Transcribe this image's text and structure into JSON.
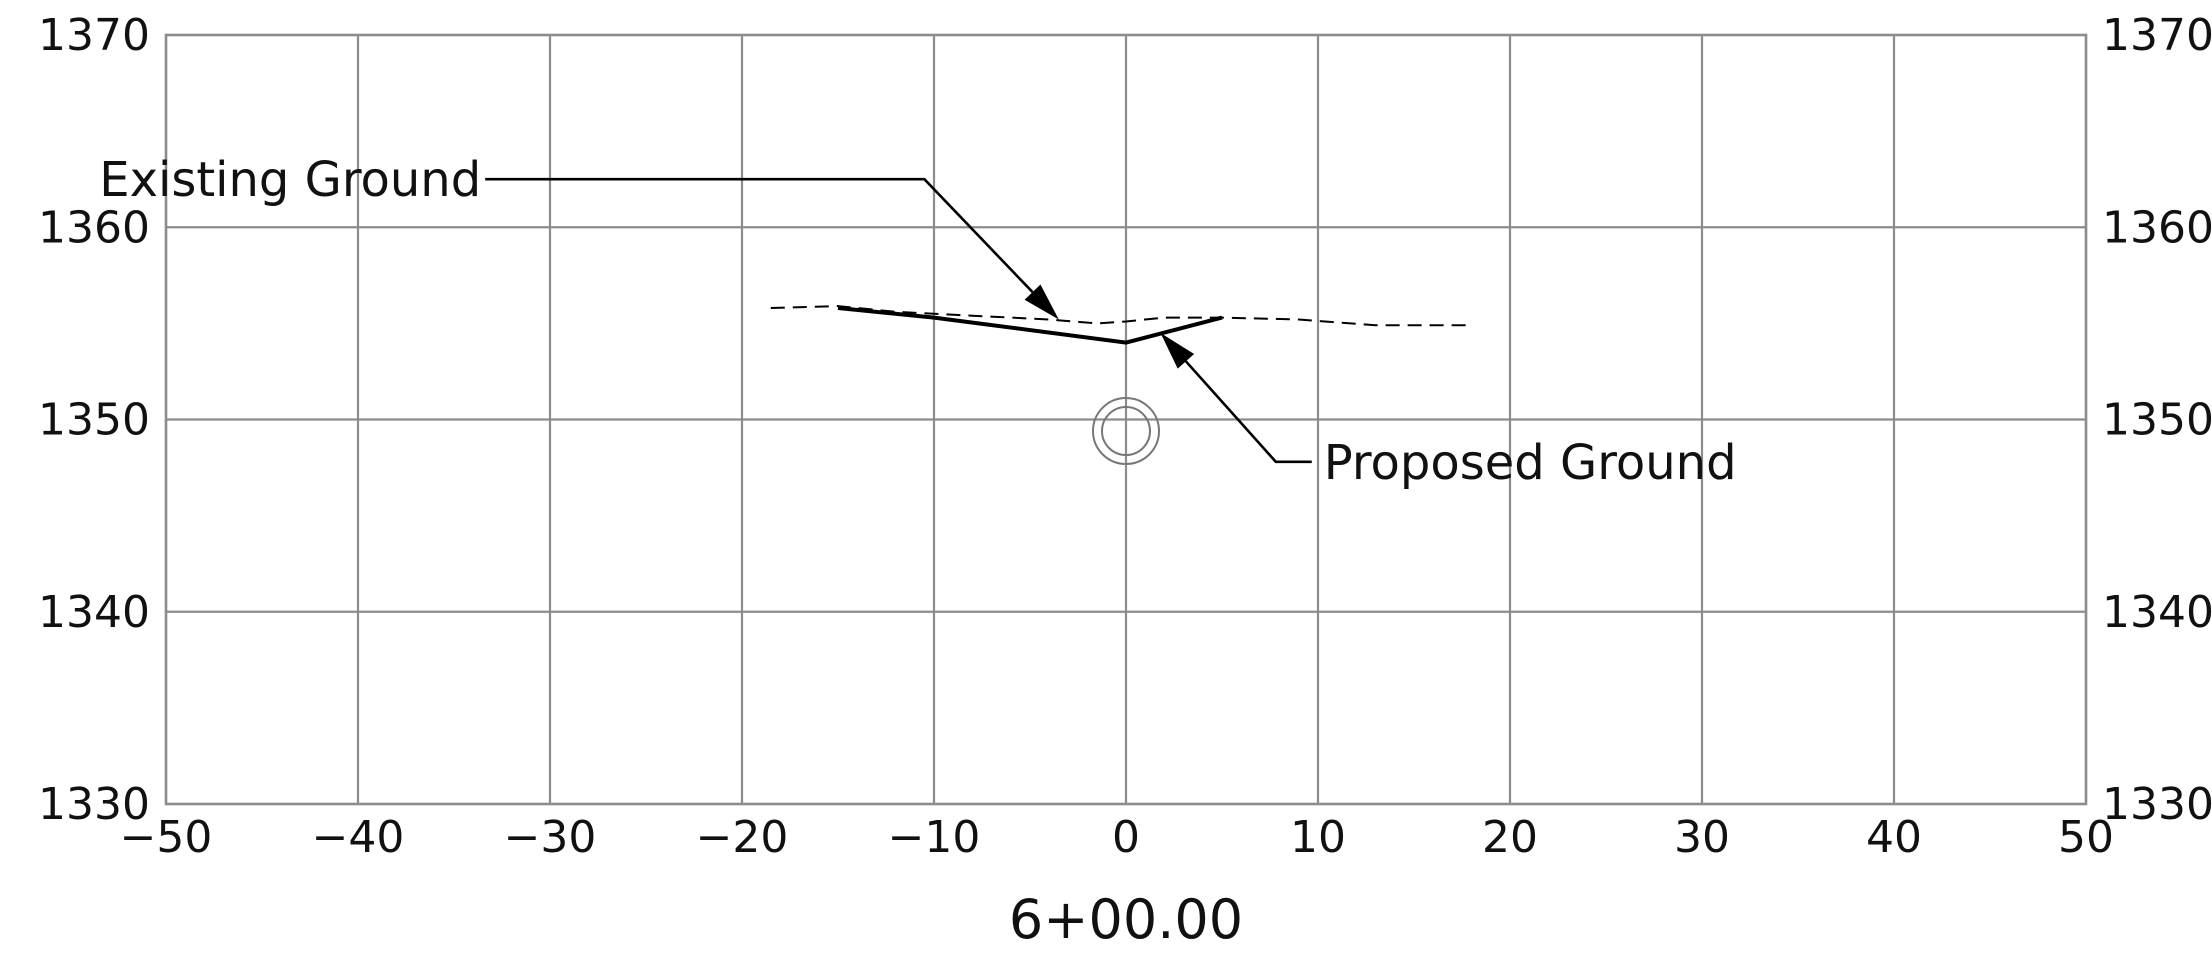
{
  "chart_data": {
    "type": "line",
    "title": "",
    "station": "6+00.00",
    "xlabel": "",
    "ylabel": "",
    "xlim": [
      -50,
      50
    ],
    "ylim": [
      1330,
      1370
    ],
    "x_ticks": [
      -50,
      -40,
      -30,
      -20,
      -10,
      0,
      10,
      20,
      30,
      40,
      50
    ],
    "x_tick_labels": [
      "−50",
      "−40",
      "−30",
      "−20",
      "−10",
      "0",
      "10",
      "20",
      "30",
      "40",
      "50"
    ],
    "y_ticks": [
      1330,
      1340,
      1350,
      1360,
      1370
    ],
    "y_tick_labels": [
      "1330",
      "1340",
      "1350",
      "1360",
      "1370"
    ],
    "grid": true,
    "series": [
      {
        "name": "Existing Ground",
        "style": "dashed",
        "x": [
          -18.5,
          -15,
          -12,
          -8,
          -4,
          -1.5,
          0,
          2,
          5,
          9,
          13,
          17.8
        ],
        "y": [
          1355.8,
          1355.9,
          1355.6,
          1355.4,
          1355.2,
          1355.0,
          1355.1,
          1355.3,
          1355.3,
          1355.2,
          1354.9,
          1354.9
        ]
      },
      {
        "name": "Proposed Ground",
        "style": "solid",
        "x": [
          -15,
          -10,
          0,
          5
        ],
        "y": [
          1355.8,
          1355.3,
          1354.0,
          1355.3
        ]
      }
    ],
    "annotations": [
      {
        "text": "Existing Ground",
        "target": [
          -3.5,
          1355.2
        ],
        "elbow": [
          -10.5,
          1362.5
        ],
        "text_x": -34,
        "text_y": 1362.5,
        "align": "left"
      },
      {
        "text": "Proposed Ground",
        "target": [
          1.8,
          1354.5
        ],
        "elbow": [
          7.8,
          1347.8
        ],
        "text_x": 10.3,
        "text_y": 1347.8,
        "align": "left"
      }
    ],
    "marker": {
      "shape": "double-circle",
      "x": 0,
      "y": 1349.4
    }
  }
}
